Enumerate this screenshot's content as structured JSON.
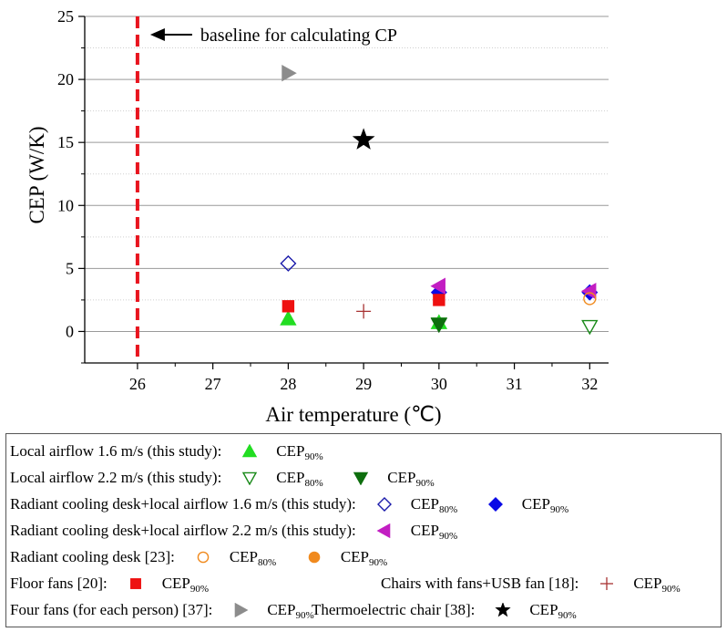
{
  "chart_data": {
    "type": "scatter",
    "title": "",
    "xlabel": "Air temperature (℃)",
    "ylabel": "CEP (W/K)",
    "xlim": [
      25.3,
      32.25
    ],
    "ylim": [
      -2.5,
      25
    ],
    "xticks": [
      26,
      27,
      28,
      29,
      30,
      31,
      32
    ],
    "yticks": [
      0,
      5,
      10,
      15,
      20,
      25
    ],
    "grid": true,
    "legend_position": "bottom",
    "baseline": {
      "x": 26,
      "label": "baseline for calculating CP",
      "color": "#e8141e"
    },
    "series": [
      {
        "name": "Local airflow 1.6 m/s (this study): CEP90%",
        "marker": "triangle-up",
        "fill": "#22dd22",
        "stroke": "#22dd22",
        "points": [
          {
            "x": 28,
            "y": 1.0
          },
          {
            "x": 30,
            "y": 0.7
          }
        ]
      },
      {
        "name": "Local airflow 2.2 m/s (this study): CEP80%",
        "marker": "triangle-down",
        "fill": "none",
        "stroke": "#1a8a1a",
        "points": [
          {
            "x": 30,
            "y": 0.6
          },
          {
            "x": 32,
            "y": 0.4
          }
        ]
      },
      {
        "name": "Local airflow 2.2 m/s (this study): CEP90%",
        "marker": "triangle-down",
        "fill": "#0e6e0e",
        "stroke": "#0e6e0e",
        "points": [
          {
            "x": 30,
            "y": 0.55
          }
        ]
      },
      {
        "name": "Radiant cooling desk+local airflow 1.6 m/s (this study): CEP80%",
        "marker": "diamond",
        "fill": "none",
        "stroke": "#1a1aaa",
        "points": [
          {
            "x": 28,
            "y": 5.4
          }
        ]
      },
      {
        "name": "Radiant cooling desk+local airflow 1.6 m/s (this study): CEP90%",
        "marker": "diamond",
        "fill": "#0a0ae6",
        "stroke": "#0a0ae6",
        "points": [
          {
            "x": 30,
            "y": 3.1
          },
          {
            "x": 32,
            "y": 3.1
          }
        ]
      },
      {
        "name": "Radiant cooling desk+local airflow 2.2 m/s (this study): CEP90%",
        "marker": "triangle-left",
        "fill": "#c21ec2",
        "stroke": "#c21ec2",
        "points": [
          {
            "x": 30,
            "y": 3.6
          },
          {
            "x": 32,
            "y": 3.2
          }
        ]
      },
      {
        "name": "Radiant cooling desk [23]: CEP80%",
        "marker": "circle",
        "fill": "none",
        "stroke": "#f08a1e",
        "points": [
          {
            "x": 32,
            "y": 2.6
          }
        ]
      },
      {
        "name": "Radiant cooling desk [23]: CEP90%",
        "marker": "circle",
        "fill": "#f08a1e",
        "stroke": "#f08a1e",
        "points": []
      },
      {
        "name": "Floor fans [20]: CEP90%",
        "marker": "square",
        "fill": "#ee1111",
        "stroke": "#ee1111",
        "points": [
          {
            "x": 28,
            "y": 2.0
          },
          {
            "x": 30,
            "y": 2.5
          }
        ]
      },
      {
        "name": "Chairs with fans+USB fan [18]: CEP90%",
        "marker": "plus",
        "fill": "none",
        "stroke": "#a83232",
        "points": [
          {
            "x": 29,
            "y": 1.6
          }
        ]
      },
      {
        "name": "Four fans (for each person) [37]: CEP90%",
        "marker": "triangle-right",
        "fill": "#8c8c8c",
        "stroke": "#8c8c8c",
        "points": [
          {
            "x": 28,
            "y": 20.5
          }
        ]
      },
      {
        "name": "Thermoelectric chair [38]: CEP90%",
        "marker": "star",
        "fill": "#000000",
        "stroke": "#000000",
        "points": [
          {
            "x": 29,
            "y": 15.2
          }
        ]
      }
    ]
  },
  "legend": [
    {
      "text": "Local airflow 1.6 m/s (this study):",
      "items": [
        {
          "marker": "triangle-up",
          "fill": "#22dd22",
          "stroke": "#22dd22",
          "cep": "CEP",
          "sub": "90%"
        }
      ]
    },
    {
      "text": "Local airflow 2.2 m/s (this study):",
      "items": [
        {
          "marker": "triangle-down",
          "fill": "none",
          "stroke": "#1a8a1a",
          "cep": "CEP",
          "sub": "80%"
        },
        {
          "marker": "triangle-down",
          "fill": "#0e6e0e",
          "stroke": "#0e6e0e",
          "cep": "CEP",
          "sub": "90%"
        }
      ]
    },
    {
      "text": "Radiant cooling desk+local airflow 1.6 m/s (this study):",
      "items": [
        {
          "marker": "diamond",
          "fill": "none",
          "stroke": "#1a1aaa",
          "cep": "CEP",
          "sub": "80%"
        },
        {
          "marker": "diamond",
          "fill": "#0a0ae6",
          "stroke": "#0a0ae6",
          "cep": "CEP",
          "sub": "90%"
        }
      ]
    },
    {
      "text": "Radiant cooling desk+local airflow 2.2 m/s (this study):",
      "items": [
        {
          "marker": "triangle-left",
          "fill": "#c21ec2",
          "stroke": "#c21ec2",
          "cep": "CEP",
          "sub": "90%"
        }
      ]
    },
    {
      "text": "Radiant cooling desk [23]:",
      "items": [
        {
          "marker": "circle",
          "fill": "none",
          "stroke": "#f08a1e",
          "cep": "CEP",
          "sub": "80%"
        },
        {
          "marker": "circle",
          "fill": "#f08a1e",
          "stroke": "#f08a1e",
          "cep": "CEP",
          "sub": "90%"
        }
      ]
    },
    {
      "text": "Floor fans [20]:",
      "items": [
        {
          "marker": "square",
          "fill": "#ee1111",
          "stroke": "#ee1111",
          "cep": "CEP",
          "sub": "90%"
        }
      ],
      "text2": "Chairs with fans+USB fan [18]:",
      "items2": [
        {
          "marker": "plus",
          "fill": "none",
          "stroke": "#a83232",
          "cep": "CEP",
          "sub": "90%"
        }
      ]
    },
    {
      "text": "Four fans (for each person) [37]:",
      "items": [
        {
          "marker": "triangle-right",
          "fill": "#8c8c8c",
          "stroke": "#8c8c8c",
          "cep": "CEP",
          "sub": "90%"
        }
      ],
      "text2": "Thermoelectric chair [38]:",
      "items2": [
        {
          "marker": "star",
          "fill": "#000000",
          "stroke": "#000000",
          "cep": "CEP",
          "sub": "90%"
        }
      ]
    }
  ]
}
